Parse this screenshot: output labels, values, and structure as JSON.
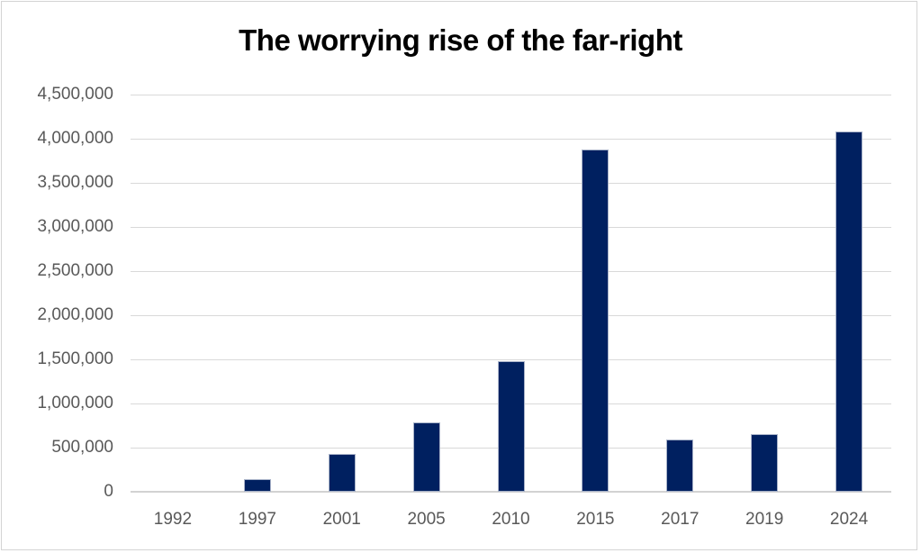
{
  "chart_data": {
    "type": "bar",
    "title": "The worrying rise of the far-right",
    "categories": [
      "1992",
      "1997",
      "2001",
      "2005",
      "2010",
      "2015",
      "2017",
      "2019",
      "2024"
    ],
    "values": [
      0,
      140000,
      430000,
      790000,
      1480000,
      3880000,
      595000,
      655000,
      4080000
    ],
    "xlabel": "",
    "ylabel": "",
    "ylim": [
      0,
      4500000
    ],
    "ytick_step": 500000,
    "ytick_labels": [
      "0",
      "500,000",
      "1,000,000",
      "1,500,000",
      "2,000,000",
      "2,500,000",
      "3,000,000",
      "3,500,000",
      "4,000,000",
      "4,500,000"
    ],
    "grid": true,
    "legend": false,
    "colors": {
      "bar_fill": "#002060",
      "bar_border": "#a9b3c9",
      "gridline": "#d9d9d9",
      "baseline": "#d2d2d2",
      "axis_label": "#595959",
      "title": "#000000",
      "frame_border": "#d4d4d4",
      "background": "#ffffff"
    }
  }
}
